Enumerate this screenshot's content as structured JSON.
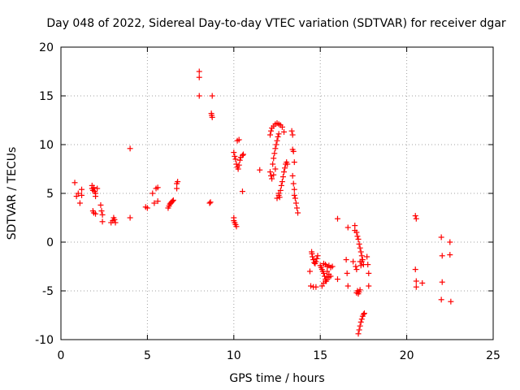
{
  "chart_data": {
    "type": "scatter",
    "title": "Day 048 of 2022, Sidereal Day-to-day VTEC variation (SDTVAR) for receiver dgar",
    "xlabel": "GPS time / hours",
    "ylabel": "SDTVAR / TECUs",
    "xlim": [
      0,
      25
    ],
    "ylim": [
      -10,
      20
    ],
    "xticks": [
      0,
      5,
      10,
      15,
      20,
      25
    ],
    "yticks": [
      -10,
      -5,
      0,
      5,
      10,
      15,
      20
    ],
    "xtick_labels": [
      "0",
      "5",
      "10",
      "15",
      "20",
      "25"
    ],
    "ytick_labels": [
      "-10",
      "-5",
      "0",
      "5",
      "10",
      "15",
      "20"
    ],
    "grid": true,
    "marker": "plus",
    "series": [
      {
        "name": "SDTVAR",
        "color": "#ff0000",
        "points": [
          [
            0.8,
            6.1
          ],
          [
            0.9,
            4.7
          ],
          [
            1.0,
            5.0
          ],
          [
            1.1,
            4.0
          ],
          [
            1.2,
            5.4
          ],
          [
            1.2,
            4.8
          ],
          [
            1.8,
            5.8
          ],
          [
            1.8,
            5.5
          ],
          [
            1.85,
            5.3
          ],
          [
            1.9,
            5.6
          ],
          [
            1.95,
            5.2
          ],
          [
            2.0,
            5.0
          ],
          [
            2.0,
            4.7
          ],
          [
            1.85,
            3.2
          ],
          [
            1.9,
            3.0
          ],
          [
            2.0,
            2.9
          ],
          [
            2.1,
            5.5
          ],
          [
            2.3,
            3.8
          ],
          [
            2.35,
            3.2
          ],
          [
            2.4,
            2.8
          ],
          [
            2.4,
            2.1
          ],
          [
            2.9,
            2.0
          ],
          [
            3.0,
            2.2
          ],
          [
            3.05,
            2.5
          ],
          [
            3.1,
            2.3
          ],
          [
            3.15,
            2.0
          ],
          [
            4.0,
            9.6
          ],
          [
            4.0,
            2.5
          ],
          [
            4.9,
            3.6
          ],
          [
            5.0,
            3.5
          ],
          [
            5.3,
            5.0
          ],
          [
            5.4,
            4.0
          ],
          [
            5.5,
            5.5
          ],
          [
            5.6,
            5.6
          ],
          [
            5.6,
            4.2
          ],
          [
            6.2,
            3.5
          ],
          [
            6.25,
            3.7
          ],
          [
            6.3,
            3.9
          ],
          [
            6.35,
            4.0
          ],
          [
            6.4,
            4.1
          ],
          [
            6.45,
            4.2
          ],
          [
            6.5,
            4.3
          ],
          [
            6.7,
            5.5
          ],
          [
            6.7,
            6.0
          ],
          [
            6.75,
            6.2
          ],
          [
            8.0,
            17.5
          ],
          [
            8.0,
            16.9
          ],
          [
            8.0,
            15.0
          ],
          [
            8.6,
            4.0
          ],
          [
            8.65,
            4.1
          ],
          [
            8.7,
            13.2
          ],
          [
            8.72,
            13.0
          ],
          [
            8.75,
            12.8
          ],
          [
            8.75,
            15.0
          ],
          [
            10.0,
            2.5
          ],
          [
            10.0,
            2.2
          ],
          [
            10.05,
            2.0
          ],
          [
            10.1,
            1.8
          ],
          [
            10.15,
            1.6
          ],
          [
            10.0,
            9.2
          ],
          [
            10.05,
            8.8
          ],
          [
            10.1,
            8.5
          ],
          [
            10.15,
            8.0
          ],
          [
            10.2,
            7.7
          ],
          [
            10.25,
            7.5
          ],
          [
            10.3,
            7.9
          ],
          [
            10.35,
            8.4
          ],
          [
            10.4,
            8.7
          ],
          [
            10.2,
            10.4
          ],
          [
            10.3,
            10.5
          ],
          [
            10.5,
            8.9
          ],
          [
            10.55,
            9.0
          ],
          [
            10.5,
            5.2
          ],
          [
            11.5,
            7.4
          ],
          [
            12.1,
            11.0
          ],
          [
            12.15,
            11.4
          ],
          [
            12.2,
            11.7
          ],
          [
            12.3,
            11.9
          ],
          [
            12.4,
            12.1
          ],
          [
            12.5,
            12.2
          ],
          [
            12.6,
            12.1
          ],
          [
            12.7,
            12.0
          ],
          [
            12.8,
            11.8
          ],
          [
            12.9,
            11.3
          ],
          [
            12.25,
            8.0
          ],
          [
            12.3,
            8.6
          ],
          [
            12.35,
            9.1
          ],
          [
            12.4,
            9.6
          ],
          [
            12.45,
            10.0
          ],
          [
            12.5,
            10.4
          ],
          [
            12.55,
            10.8
          ],
          [
            12.6,
            11.1
          ],
          [
            12.1,
            7.2
          ],
          [
            12.15,
            6.8
          ],
          [
            12.2,
            6.5
          ],
          [
            12.3,
            6.9
          ],
          [
            12.4,
            7.5
          ],
          [
            12.6,
            5.0
          ],
          [
            12.65,
            4.6
          ],
          [
            12.7,
            5.3
          ],
          [
            12.75,
            5.8
          ],
          [
            12.8,
            6.2
          ],
          [
            12.85,
            6.7
          ],
          [
            12.9,
            7.2
          ],
          [
            12.95,
            7.6
          ],
          [
            13.0,
            8.0
          ],
          [
            13.05,
            8.2
          ],
          [
            13.1,
            8.0
          ],
          [
            12.5,
            4.5
          ],
          [
            12.6,
            4.8
          ],
          [
            13.35,
            11.4
          ],
          [
            13.4,
            11.0
          ],
          [
            13.4,
            9.5
          ],
          [
            13.45,
            9.3
          ],
          [
            13.5,
            8.2
          ],
          [
            13.4,
            6.8
          ],
          [
            13.45,
            6.0
          ],
          [
            13.5,
            5.4
          ],
          [
            13.5,
            4.8
          ],
          [
            13.55,
            4.5
          ],
          [
            13.6,
            4.0
          ],
          [
            13.65,
            3.5
          ],
          [
            13.7,
            3.0
          ],
          [
            14.5,
            -1.0
          ],
          [
            14.52,
            -1.2
          ],
          [
            14.55,
            -1.5
          ],
          [
            14.6,
            -1.8
          ],
          [
            14.65,
            -2.1
          ],
          [
            14.7,
            -2.2
          ],
          [
            14.75,
            -2.0
          ],
          [
            14.8,
            -1.7
          ],
          [
            14.85,
            -1.4
          ],
          [
            14.4,
            -3.0
          ],
          [
            14.45,
            -4.5
          ],
          [
            14.6,
            -4.6
          ],
          [
            14.75,
            -4.6
          ],
          [
            15.0,
            -2.4
          ],
          [
            15.05,
            -2.6
          ],
          [
            15.1,
            -2.8
          ],
          [
            15.15,
            -3.0
          ],
          [
            15.2,
            -3.2
          ],
          [
            15.25,
            -3.5
          ],
          [
            15.3,
            -3.8
          ],
          [
            15.35,
            -4.0
          ],
          [
            15.4,
            -3.6
          ],
          [
            15.1,
            -4.5
          ],
          [
            15.2,
            -4.2
          ],
          [
            15.3,
            -4.0
          ],
          [
            15.4,
            -3.8
          ],
          [
            15.5,
            -3.6
          ],
          [
            15.2,
            -2.2
          ],
          [
            15.3,
            -2.3
          ],
          [
            15.4,
            -2.5
          ],
          [
            15.5,
            -2.4
          ],
          [
            15.6,
            -2.6
          ],
          [
            15.7,
            -2.5
          ],
          [
            15.4,
            -3.0
          ],
          [
            15.5,
            -3.3
          ],
          [
            15.6,
            -3.5
          ],
          [
            16.0,
            2.4
          ],
          [
            16.0,
            -3.8
          ],
          [
            16.5,
            -1.8
          ],
          [
            16.55,
            -3.2
          ],
          [
            16.6,
            -4.5
          ],
          [
            16.6,
            1.5
          ],
          [
            16.9,
            -2.0
          ],
          [
            17.0,
            1.7
          ],
          [
            17.0,
            1.2
          ],
          [
            17.05,
            -2.5
          ],
          [
            17.1,
            -2.8
          ],
          [
            17.1,
            -5.2
          ],
          [
            17.15,
            -5.0
          ],
          [
            17.2,
            -5.3
          ],
          [
            17.25,
            -5.1
          ],
          [
            17.3,
            -4.9
          ],
          [
            17.1,
            1.0
          ],
          [
            17.15,
            0.6
          ],
          [
            17.2,
            0.3
          ],
          [
            17.25,
            -0.2
          ],
          [
            17.3,
            -0.6
          ],
          [
            17.35,
            -1.0
          ],
          [
            17.4,
            -1.4
          ],
          [
            17.45,
            -1.8
          ],
          [
            17.5,
            -2.3
          ],
          [
            17.2,
            -9.4
          ],
          [
            17.25,
            -9.0
          ],
          [
            17.3,
            -8.6
          ],
          [
            17.35,
            -8.2
          ],
          [
            17.4,
            -7.9
          ],
          [
            17.45,
            -7.6
          ],
          [
            17.5,
            -7.4
          ],
          [
            17.55,
            -7.3
          ],
          [
            17.3,
            -2.0
          ],
          [
            17.35,
            -2.4
          ],
          [
            17.4,
            -2.0
          ],
          [
            17.7,
            -1.5
          ],
          [
            17.75,
            -2.3
          ],
          [
            17.8,
            -3.2
          ],
          [
            17.8,
            -4.5
          ],
          [
            20.5,
            2.7
          ],
          [
            20.55,
            2.4
          ],
          [
            20.5,
            -2.8
          ],
          [
            20.55,
            -4.0
          ],
          [
            20.55,
            -4.6
          ],
          [
            20.9,
            -4.2
          ],
          [
            22.0,
            0.5
          ],
          [
            22.05,
            -1.4
          ],
          [
            22.05,
            -4.1
          ],
          [
            22.0,
            -5.9
          ],
          [
            22.5,
            0.0
          ],
          [
            22.5,
            -1.3
          ],
          [
            22.55,
            -6.1
          ]
        ]
      }
    ]
  }
}
